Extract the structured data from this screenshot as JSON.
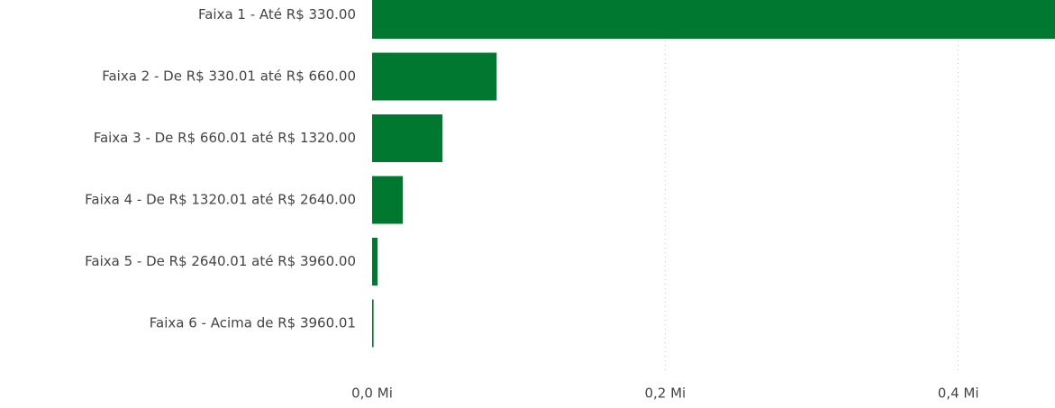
{
  "chart_data": {
    "type": "hbar",
    "categories": [
      "Faixa 1 - Até R$ 330.00",
      "Faixa 2 - De R$ 330.01 até R$ 660.00",
      "Faixa 3 - De R$ 660.01 até R$ 1320.00",
      "Faixa 4 - De R$ 1320.01 até R$ 2640.00",
      "Faixa 5 - De R$ 2640.01 até R$ 3960.00",
      "Faixa 6 - Acima de R$ 3960.01"
    ],
    "values": [
      0.466,
      0.085,
      0.048,
      0.021,
      0.0037,
      0.001
    ],
    "color": "#00782f",
    "xlim": [
      0,
      0.466
    ],
    "xticks": [
      {
        "value": 0,
        "label": "0,0 Mi"
      },
      {
        "value": 0.2,
        "label": "0,2 Mi"
      },
      {
        "value": 0.4,
        "label": "0,4 Mi"
      }
    ],
    "grid": true
  }
}
